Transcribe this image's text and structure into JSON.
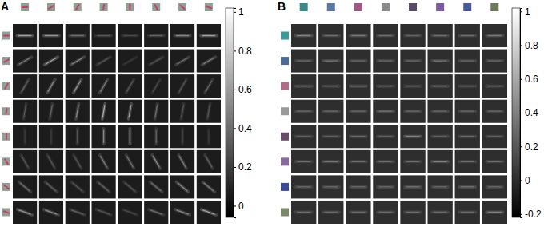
{
  "chart_data": [
    {
      "type": "heatmap",
      "title": "A",
      "row_angles": [
        0,
        30,
        60,
        80,
        90,
        120,
        140,
        160
      ],
      "col_angles": [
        0,
        30,
        60,
        80,
        90,
        120,
        140,
        160
      ],
      "values": [
        [
          0.6,
          0.55,
          0.4,
          0.3,
          0.25,
          0.35,
          0.5,
          0.6
        ],
        [
          0.45,
          0.6,
          0.5,
          0.3,
          0.2,
          0.3,
          0.4,
          0.45
        ],
        [
          0.35,
          0.5,
          0.55,
          0.45,
          0.3,
          0.25,
          0.3,
          0.35
        ],
        [
          0.3,
          0.35,
          0.5,
          0.65,
          0.6,
          0.4,
          0.3,
          0.3
        ],
        [
          0.2,
          0.2,
          0.3,
          0.5,
          0.55,
          0.35,
          0.25,
          0.2
        ],
        [
          0.3,
          0.3,
          0.3,
          0.45,
          0.4,
          0.5,
          0.45,
          0.35
        ],
        [
          0.4,
          0.35,
          0.3,
          0.35,
          0.3,
          0.4,
          0.5,
          0.45
        ],
        [
          0.55,
          0.5,
          0.35,
          0.3,
          0.25,
          0.4,
          0.5,
          0.6
        ]
      ],
      "colorbar_lim": [
        -0.06,
        1.02
      ],
      "colorbar_ticks": [
        0,
        0.2,
        0.4,
        0.6,
        0.8,
        1
      ]
    },
    {
      "type": "heatmap",
      "title": "B",
      "row_colors": [
        "#3a9a9a",
        "#4a6a9a",
        "#b06a8a",
        "#9a9a9a",
        "#6a4a6a",
        "#8a6aa0",
        "#3a4a9a",
        "#7a8a6a"
      ],
      "col_colors": [
        "#3a8a8a",
        "#5a7aa0",
        "#a05a80",
        "#8a8a8a",
        "#5a4a6a",
        "#7a5aa0",
        "#4a5aa0",
        "#6a7a5a"
      ],
      "values": [
        [
          0.4,
          0.3,
          0.35,
          0.3,
          0.25,
          0.3,
          0.3,
          0.35
        ],
        [
          0.3,
          0.35,
          0.3,
          0.3,
          0.3,
          0.35,
          0.3,
          0.3
        ],
        [
          0.35,
          0.3,
          0.4,
          0.3,
          0.3,
          0.35,
          0.3,
          0.3
        ],
        [
          0.3,
          0.3,
          0.3,
          0.35,
          0.3,
          0.3,
          0.3,
          0.3
        ],
        [
          0.3,
          0.3,
          0.35,
          0.3,
          0.5,
          0.3,
          0.35,
          0.3
        ],
        [
          0.3,
          0.35,
          0.3,
          0.3,
          0.3,
          0.4,
          0.3,
          0.3
        ],
        [
          0.3,
          0.3,
          0.3,
          0.3,
          0.35,
          0.3,
          0.35,
          0.3
        ],
        [
          0.3,
          0.3,
          0.3,
          0.3,
          0.3,
          0.3,
          0.3,
          0.4
        ]
      ],
      "colorbar_lim": [
        -0.22,
        1.02
      ],
      "colorbar_ticks": [
        -0.2,
        0,
        0.2,
        0.4,
        0.6,
        0.8,
        1
      ]
    }
  ]
}
